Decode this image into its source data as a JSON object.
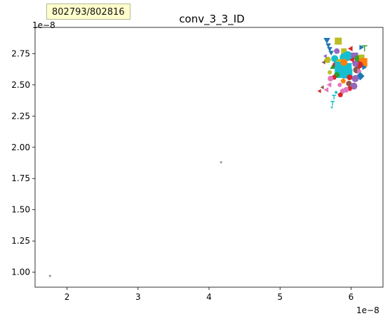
{
  "tooltip": {
    "text": "802793/802816"
  },
  "chart_data": {
    "type": "scatter",
    "title": "conv_3_3_ID",
    "xlabel": "",
    "ylabel": "",
    "x_offset_label": "1e−8",
    "y_offset_label": "1e−8",
    "xlim": [
      1.55,
      6.45
    ],
    "ylim": [
      0.88,
      2.96
    ],
    "xticks": [
      2,
      3,
      4,
      5,
      6
    ],
    "xtick_labels": [
      "2",
      "3",
      "4",
      "5",
      "6"
    ],
    "yticks": [
      1.0,
      1.25,
      1.5,
      1.75,
      2.0,
      2.25,
      2.5,
      2.75
    ],
    "ytick_labels": [
      "1.00",
      "1.25",
      "1.50",
      "1.75",
      "2.00",
      "2.25",
      "2.50",
      "2.75"
    ],
    "grid": false,
    "legend": "none",
    "colors": [
      "#1f77b4",
      "#ff7f0e",
      "#2ca02c",
      "#d62728",
      "#9467bd",
      "#8c564b",
      "#e377c2",
      "#7f7f7f",
      "#bcbd22",
      "#17becf"
    ],
    "points": [
      {
        "x": 1.76,
        "y": 0.97,
        "marker": "triangle-down",
        "color": 7,
        "size": 2
      },
      {
        "x": 4.17,
        "y": 1.88,
        "marker": "triangle-down",
        "color": 7,
        "size": 2
      },
      {
        "x": 5.66,
        "y": 2.86,
        "marker": "triangle-down",
        "color": 0,
        "size": 5
      },
      {
        "x": 5.68,
        "y": 2.82,
        "marker": "triangle-down",
        "color": 0,
        "size": 4
      },
      {
        "x": 5.7,
        "y": 2.79,
        "marker": "triangle-down",
        "color": 0,
        "size": 4
      },
      {
        "x": 5.82,
        "y": 2.85,
        "marker": "square",
        "color": 8,
        "size": 5
      },
      {
        "x": 5.72,
        "y": 2.76,
        "marker": "triangle-down",
        "color": 0,
        "size": 4
      },
      {
        "x": 6.14,
        "y": 2.8,
        "marker": "triangle-right",
        "color": 0,
        "size": 4
      },
      {
        "x": 6.19,
        "y": 2.79,
        "marker": "tri",
        "color": 2,
        "size": 4
      },
      {
        "x": 6.0,
        "y": 2.79,
        "marker": "triangle-left",
        "color": 3,
        "size": 4
      },
      {
        "x": 5.9,
        "y": 2.77,
        "marker": "square",
        "color": 8,
        "size": 4
      },
      {
        "x": 5.8,
        "y": 2.77,
        "marker": "circle",
        "color": 4,
        "size": 4
      },
      {
        "x": 5.67,
        "y": 2.7,
        "marker": "hexagon",
        "color": 8,
        "size": 5
      },
      {
        "x": 5.62,
        "y": 2.68,
        "marker": "triangle-left",
        "color": 5,
        "size": 3
      },
      {
        "x": 5.77,
        "y": 2.71,
        "marker": "circle",
        "color": 9,
        "size": 5
      },
      {
        "x": 5.9,
        "y": 2.72,
        "marker": "circle",
        "color": 9,
        "size": 6
      },
      {
        "x": 5.95,
        "y": 2.73,
        "marker": "circle",
        "color": 9,
        "size": 7
      },
      {
        "x": 6.05,
        "y": 2.73,
        "marker": "square",
        "color": 4,
        "size": 5
      },
      {
        "x": 6.1,
        "y": 2.71,
        "marker": "circle",
        "color": 2,
        "size": 5
      },
      {
        "x": 6.15,
        "y": 2.72,
        "marker": "square",
        "color": 8,
        "size": 4
      },
      {
        "x": 6.17,
        "y": 2.68,
        "marker": "square",
        "color": 1,
        "size": 6
      },
      {
        "x": 6.12,
        "y": 2.66,
        "marker": "circle",
        "color": 3,
        "size": 5
      },
      {
        "x": 6.06,
        "y": 2.67,
        "marker": "pentagon",
        "color": 4,
        "size": 5
      },
      {
        "x": 5.84,
        "y": 2.68,
        "marker": "circle",
        "color": 8,
        "size": 5
      },
      {
        "x": 5.78,
        "y": 2.66,
        "marker": "circle",
        "color": 3,
        "size": 4
      },
      {
        "x": 5.74,
        "y": 2.64,
        "marker": "triangle-up",
        "color": 2,
        "size": 4
      },
      {
        "x": 5.85,
        "y": 2.64,
        "marker": "square",
        "color": 9,
        "size": 8
      },
      {
        "x": 5.93,
        "y": 2.63,
        "marker": "square",
        "color": 9,
        "size": 8
      },
      {
        "x": 5.86,
        "y": 2.6,
        "marker": "square",
        "color": 9,
        "size": 8
      },
      {
        "x": 5.95,
        "y": 2.59,
        "marker": "square",
        "color": 9,
        "size": 7
      },
      {
        "x": 6.08,
        "y": 2.62,
        "marker": "circle",
        "color": 5,
        "size": 5
      },
      {
        "x": 6.11,
        "y": 2.61,
        "marker": "triangle-right",
        "color": 6,
        "size": 4
      },
      {
        "x": 6.13,
        "y": 2.57,
        "marker": "diamond",
        "color": 0,
        "size": 5
      },
      {
        "x": 6.06,
        "y": 2.55,
        "marker": "circle",
        "color": 4,
        "size": 5
      },
      {
        "x": 5.98,
        "y": 2.56,
        "marker": "circle",
        "color": 3,
        "size": 4
      },
      {
        "x": 5.8,
        "y": 2.58,
        "marker": "circle",
        "color": 2,
        "size": 4
      },
      {
        "x": 5.76,
        "y": 2.56,
        "marker": "pentagon",
        "color": 3,
        "size": 4
      },
      {
        "x": 5.71,
        "y": 2.55,
        "marker": "circle",
        "color": 6,
        "size": 4
      },
      {
        "x": 5.89,
        "y": 2.53,
        "marker": "pentagon",
        "color": 1,
        "size": 4
      },
      {
        "x": 5.97,
        "y": 2.51,
        "marker": "circle",
        "color": 5,
        "size": 4
      },
      {
        "x": 6.04,
        "y": 2.49,
        "marker": "circle",
        "color": 4,
        "size": 5
      },
      {
        "x": 5.98,
        "y": 2.47,
        "marker": "pentagon",
        "color": 3,
        "size": 4
      },
      {
        "x": 5.93,
        "y": 2.46,
        "marker": "circle",
        "color": 6,
        "size": 4
      },
      {
        "x": 5.88,
        "y": 2.45,
        "marker": "pentagon",
        "color": 6,
        "size": 4
      },
      {
        "x": 5.84,
        "y": 2.5,
        "marker": "circle",
        "color": 6,
        "size": 3
      },
      {
        "x": 5.7,
        "y": 2.5,
        "marker": "triangle-left",
        "color": 6,
        "size": 4
      },
      {
        "x": 5.6,
        "y": 2.48,
        "marker": "triangle-left",
        "color": 5,
        "size": 3
      },
      {
        "x": 5.66,
        "y": 2.46,
        "marker": "triangle-left",
        "color": 6,
        "size": 4
      },
      {
        "x": 5.56,
        "y": 2.45,
        "marker": "triangle-left",
        "color": 3,
        "size": 3
      },
      {
        "x": 5.79,
        "y": 2.44,
        "marker": "circle",
        "color": 9,
        "size": 2
      },
      {
        "x": 5.85,
        "y": 2.42,
        "marker": "pentagon",
        "color": 3,
        "size": 4
      },
      {
        "x": 5.76,
        "y": 2.4,
        "marker": "tri",
        "color": 9,
        "size": 3
      },
      {
        "x": 5.74,
        "y": 2.35,
        "marker": "tri",
        "color": 9,
        "size": 3
      },
      {
        "x": 5.73,
        "y": 2.32,
        "marker": "triangle-left",
        "color": 9,
        "size": 2
      },
      {
        "x": 5.9,
        "y": 2.68,
        "marker": "circle",
        "color": 1,
        "size": 5
      },
      {
        "x": 6.02,
        "y": 2.7,
        "marker": "triangle-left",
        "color": 3,
        "size": 4
      },
      {
        "x": 5.7,
        "y": 2.6,
        "marker": "circle",
        "color": 8,
        "size": 3
      },
      {
        "x": 6.18,
        "y": 2.64,
        "marker": "triangle-right",
        "color": 0,
        "size": 4
      },
      {
        "x": 5.64,
        "y": 2.73,
        "marker": "triangle-left",
        "color": 4,
        "size": 3
      }
    ]
  }
}
